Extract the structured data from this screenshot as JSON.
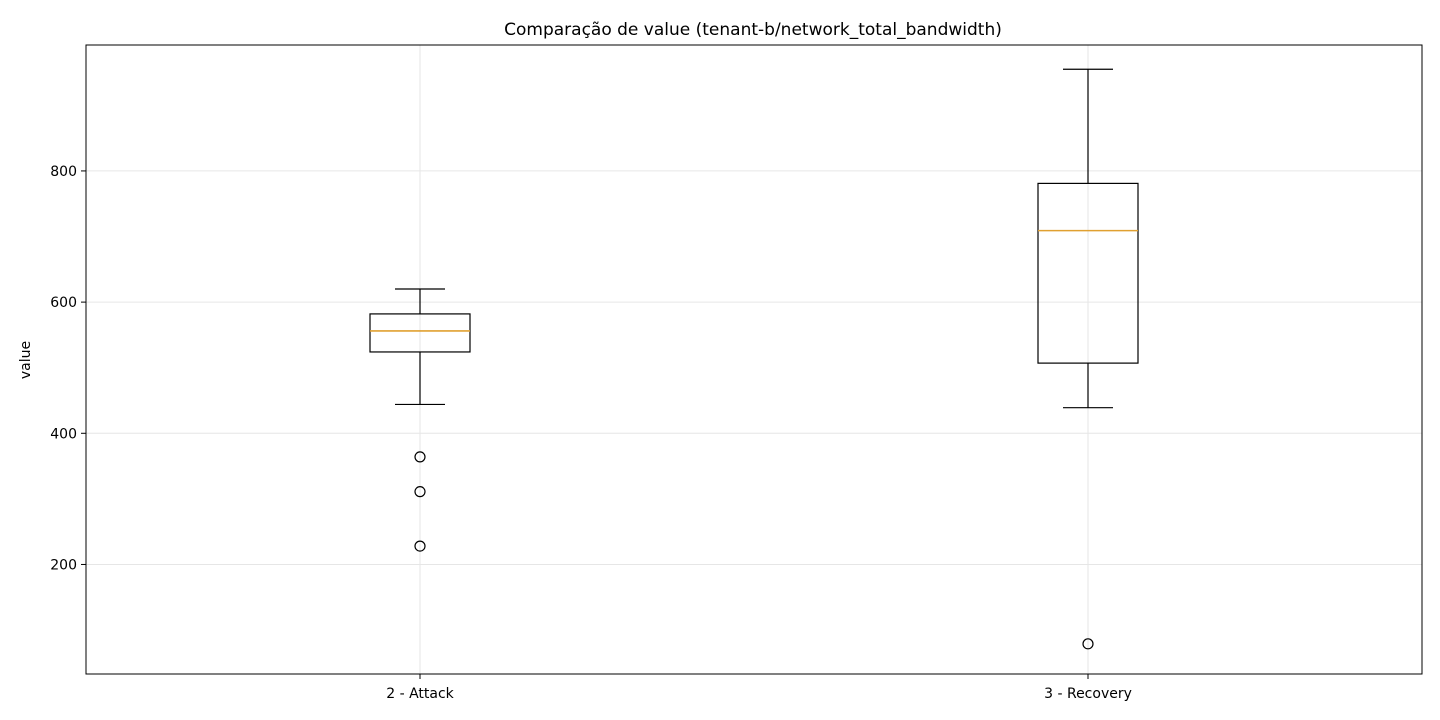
{
  "chart_data": {
    "type": "box",
    "title": "Comparação de value (tenant-b/network_total_bandwidth)",
    "xlabel": "",
    "ylabel": "value",
    "ylim": [
      33,
      992
    ],
    "yticks": [
      200,
      400,
      600,
      800
    ],
    "grid": true,
    "categories": [
      "2 - Attack",
      "3 - Recovery"
    ],
    "boxes": [
      {
        "category": "2 - Attack",
        "whisker_low": 444,
        "q1": 524,
        "median": 556,
        "q3": 582,
        "whisker_high": 620,
        "outliers": [
          364,
          311,
          228
        ]
      },
      {
        "category": "3 - Recovery",
        "whisker_low": 439,
        "q1": 507,
        "median": 709,
        "q3": 781,
        "whisker_high": 955,
        "outliers": [
          79
        ]
      }
    ],
    "colors": {
      "box": "#000000",
      "median": "#e0a030",
      "grid": "#e6e6e6"
    }
  }
}
